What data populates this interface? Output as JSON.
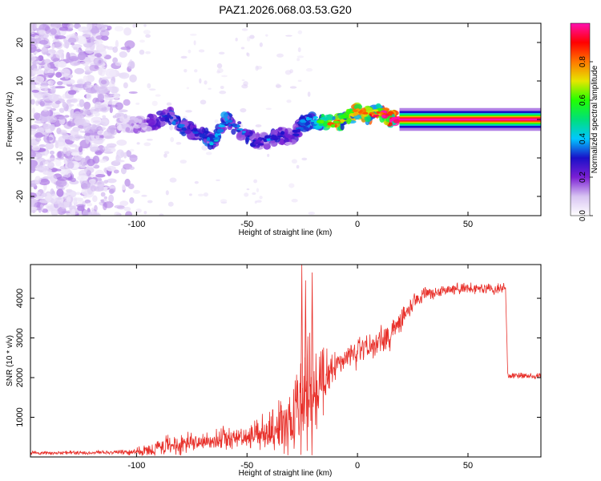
{
  "title": "PAZ1.2026.068.03.53.G20",
  "chart_data": [
    {
      "type": "heatmap",
      "name": "spectrogram",
      "xlabel": "Height of straight line (km)",
      "ylabel": "Frequency (Hz)",
      "xlim": [
        -148,
        83
      ],
      "ylim": [
        -25,
        25
      ],
      "xticks": [
        -100,
        -50,
        0,
        50
      ],
      "yticks": [
        -20,
        -10,
        0,
        10,
        20
      ],
      "ridge": {
        "x": [
          -105,
          -100,
          -95,
          -90,
          -85,
          -80,
          -75,
          -70,
          -65,
          -60,
          -55,
          -50,
          -45,
          -40,
          -35,
          -30,
          -25,
          -20,
          -15,
          -10,
          -5,
          0,
          5,
          10,
          15,
          20,
          30,
          40,
          50,
          60,
          70,
          83
        ],
        "freq": [
          -1,
          -1.5,
          -1,
          0,
          1,
          -2,
          -3,
          -4,
          -6,
          0,
          -2,
          -4,
          -6,
          -5,
          -4,
          -5,
          -1,
          0,
          -1,
          -1,
          0,
          2,
          1,
          2,
          0,
          0,
          0,
          0,
          0,
          0,
          0,
          0
        ],
        "amplitude": [
          0.1,
          0.15,
          0.2,
          0.25,
          0.3,
          0.3,
          0.25,
          0.3,
          0.35,
          0.35,
          0.3,
          0.3,
          0.25,
          0.3,
          0.25,
          0.2,
          0.3,
          0.35,
          0.6,
          0.7,
          0.6,
          0.75,
          0.7,
          0.75,
          0.85,
          1.0,
          1.0,
          1.0,
          1.0,
          1.0,
          1.0,
          1.0
        ]
      }
    },
    {
      "type": "line",
      "name": "snr",
      "xlabel": "Height of straight line (km)",
      "ylabel": "SNR (10 * v/v)",
      "xlim": [
        -148,
        83
      ],
      "ylim": [
        0,
        4850
      ],
      "xticks": [
        -100,
        -50,
        0,
        50
      ],
      "yticks": [
        1000,
        2000,
        3000,
        4000
      ],
      "color": "#e8302a",
      "envelope": {
        "x": [
          -148,
          -120,
          -105,
          -100,
          -95,
          -90,
          -85,
          -80,
          -75,
          -70,
          -65,
          -60,
          -55,
          -50,
          -45,
          -40,
          -35,
          -30,
          -25,
          -20,
          -15,
          -10,
          -5,
          0,
          5,
          10,
          15,
          20,
          25,
          30,
          40,
          50,
          60,
          67,
          68,
          75,
          83
        ],
        "base": [
          100,
          110,
          120,
          130,
          160,
          220,
          300,
          350,
          380,
          380,
          420,
          470,
          500,
          450,
          600,
          650,
          800,
          1000,
          1300,
          1700,
          2000,
          2300,
          2500,
          2600,
          2750,
          2900,
          3100,
          3500,
          3900,
          4100,
          4200,
          4250,
          4250,
          4250,
          2050,
          2050,
          2050
        ],
        "noise": [
          60,
          60,
          70,
          120,
          200,
          300,
          350,
          400,
          300,
          250,
          300,
          400,
          300,
          250,
          450,
          600,
          900,
          1300,
          1700,
          1700,
          900,
          500,
          450,
          450,
          450,
          450,
          450,
          400,
          250,
          200,
          180,
          180,
          180,
          180,
          100,
          100,
          100
        ]
      },
      "spikes": [
        {
          "x": -25.2,
          "y": 4850
        },
        {
          "x": -20.5,
          "y": 4650
        },
        {
          "x": -23.5,
          "y": 4450
        }
      ]
    }
  ],
  "colorbar": {
    "label": "Normalized spectral amplitude",
    "ticks": [
      "0.0",
      "0.2",
      "0.4",
      "0.6",
      "0.8"
    ],
    "tick_values": [
      0,
      0.2,
      0.4,
      0.6,
      0.8
    ],
    "range": [
      0,
      1
    ],
    "stops": [
      "#ffffff",
      "#d8c4f2",
      "#7a1fd4",
      "#1a10c8",
      "#00c8ff",
      "#00e07a",
      "#22ff00",
      "#e6e600",
      "#ff7700",
      "#ff0000",
      "#ff10b0"
    ]
  }
}
